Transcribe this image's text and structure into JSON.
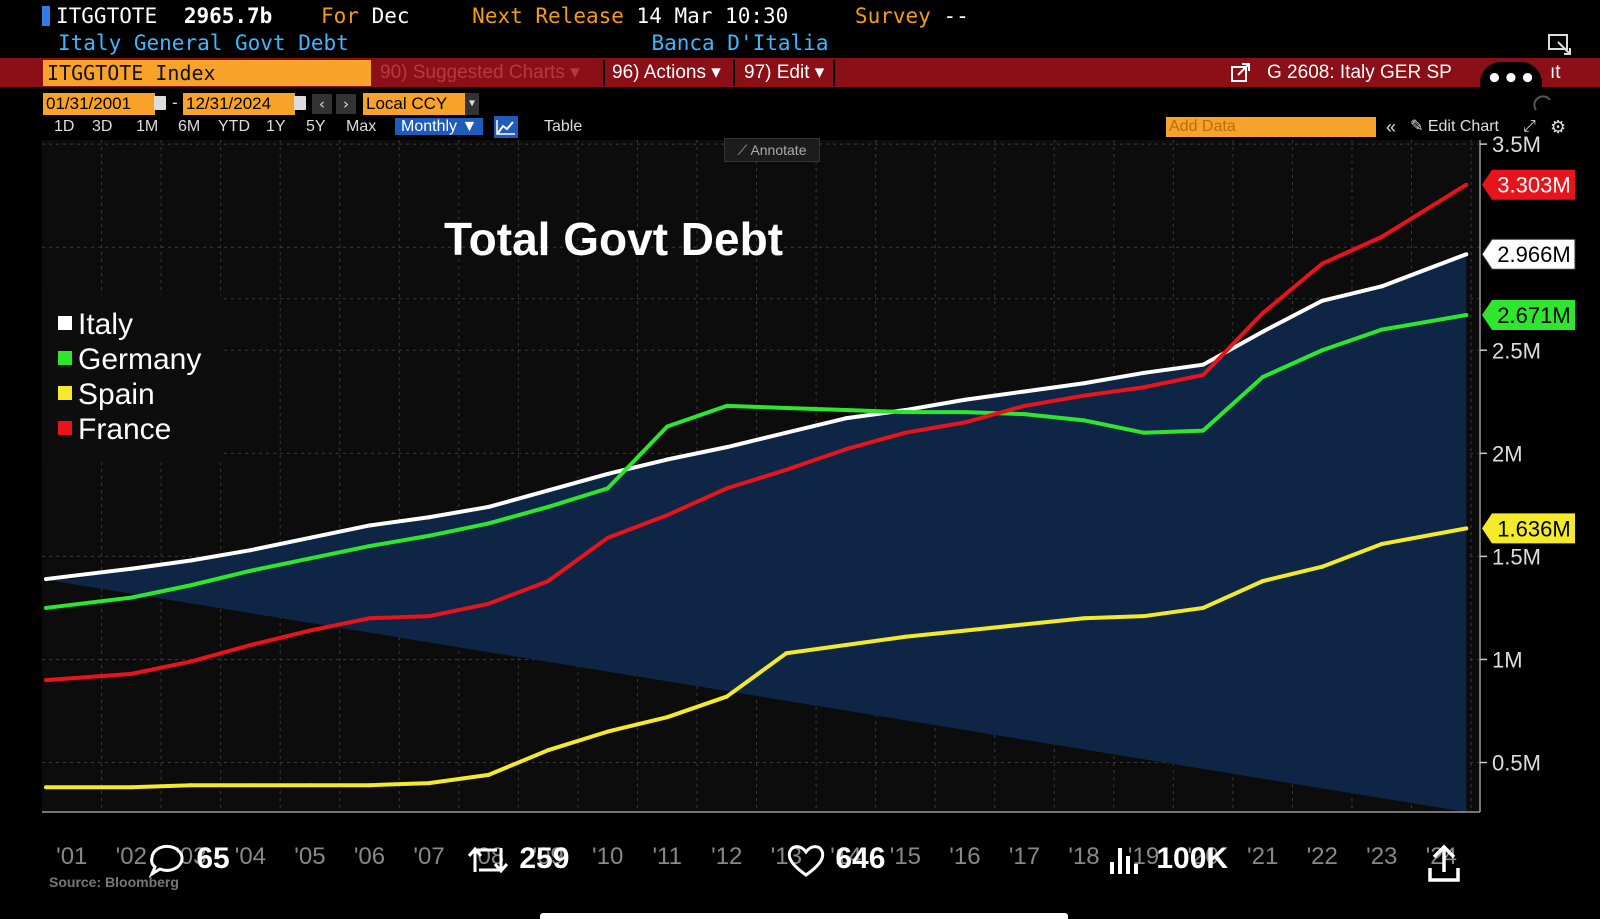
{
  "header": {
    "ticker": "ITGGTOTE",
    "value": "2965.7b",
    "for_label": "For",
    "for_value": "Dec",
    "next_release_label": "Next Release",
    "next_release_value": "14 Mar 10:30",
    "survey_label": "Survey",
    "survey_value": "--",
    "description": "Italy General Govt Debt",
    "source_name": "Banca D'Italia"
  },
  "toolbar": {
    "index_label": "ITGGTOTE Index",
    "suggested": "90) Suggested Charts",
    "actions": "96) Actions",
    "edit": "97) Edit",
    "chart_ref": "G 2608: Italy GER SP",
    "chart_ref_tail": "ıt"
  },
  "controls": {
    "start_date": "01/31/2001",
    "dash": "-",
    "end_date": "12/31/2024",
    "currency": "Local CCY",
    "ranges": [
      "1D",
      "3D",
      "1M",
      "6M",
      "YTD",
      "1Y",
      "5Y",
      "Max"
    ],
    "frequency": "Monthly",
    "table": "Table",
    "add_data": "Add Data",
    "edit_chart": "Edit Chart",
    "annotate": "Annotate"
  },
  "colors": {
    "italy": "#ffffff",
    "germany": "#2ee62e",
    "spain": "#f2ea2a",
    "france": "#e8141c",
    "area": "#0e2545",
    "plot_bg": "#0c0c0c",
    "accent": "#f7a32a"
  },
  "chart_data": {
    "type": "line",
    "title": "Total Govt Debt",
    "x": [
      "2001",
      "2002",
      "2003",
      "2004",
      "2005",
      "2006",
      "2007",
      "2008",
      "2009",
      "2010",
      "2011",
      "2012",
      "2013",
      "2014",
      "2015",
      "2016",
      "2017",
      "2018",
      "2019",
      "2020",
      "2021",
      "2022",
      "2023",
      "2024"
    ],
    "x_tick_labels": [
      "'01",
      "'02",
      "'03",
      "'04",
      "'05",
      "'06",
      "'07",
      "'08",
      "'09",
      "'10",
      "'11",
      "'12",
      "'13",
      "'14",
      "'15",
      "'16",
      "'17",
      "'18",
      "'19",
      "'20",
      "'21",
      "'22",
      "'23",
      "'24"
    ],
    "series": [
      {
        "name": "Italy",
        "values": [
          1.39,
          1.44,
          1.48,
          1.53,
          1.59,
          1.65,
          1.69,
          1.74,
          1.82,
          1.9,
          1.97,
          2.03,
          2.1,
          2.17,
          2.21,
          2.26,
          2.3,
          2.34,
          2.39,
          2.43,
          2.59,
          2.74,
          2.81,
          2.966
        ],
        "last_label": "2.966M"
      },
      {
        "name": "Germany",
        "values": [
          1.25,
          1.3,
          1.36,
          1.43,
          1.49,
          1.55,
          1.6,
          1.66,
          1.74,
          1.83,
          2.13,
          2.23,
          2.22,
          2.21,
          2.2,
          2.2,
          2.19,
          2.16,
          2.1,
          2.11,
          2.37,
          2.5,
          2.6,
          2.671
        ],
        "last_label": "2.671M"
      },
      {
        "name": "Spain",
        "values": [
          0.38,
          0.38,
          0.39,
          0.39,
          0.39,
          0.39,
          0.4,
          0.44,
          0.56,
          0.65,
          0.72,
          0.82,
          1.03,
          1.07,
          1.11,
          1.14,
          1.17,
          1.2,
          1.21,
          1.25,
          1.38,
          1.45,
          1.56,
          1.636
        ],
        "last_label": "1.636M"
      },
      {
        "name": "France",
        "values": [
          0.9,
          0.93,
          0.99,
          1.07,
          1.14,
          1.2,
          1.21,
          1.27,
          1.38,
          1.59,
          1.7,
          1.83,
          1.92,
          2.02,
          2.1,
          2.15,
          2.23,
          2.28,
          2.32,
          2.38,
          2.68,
          2.92,
          3.05,
          3.303
        ],
        "last_label": "3.303M"
      }
    ],
    "y_ticks": [
      {
        "value": 0.5,
        "label": "0.5M"
      },
      {
        "value": 1.0,
        "label": "1M"
      },
      {
        "value": 1.5,
        "label": "1.5M"
      },
      {
        "value": 2.0,
        "label": "2M"
      },
      {
        "value": 2.5,
        "label": "2.5M"
      },
      {
        "value": 3.5,
        "label": "3.5M"
      }
    ],
    "ylim": [
      0.26,
      3.52
    ],
    "xlim": [
      2001.0,
      2025.15
    ],
    "grid": true,
    "legend_position": "left",
    "source": "Source: Bloomberg"
  },
  "social": {
    "replies": "65",
    "reposts": "259",
    "likes": "646",
    "views": "100K"
  }
}
